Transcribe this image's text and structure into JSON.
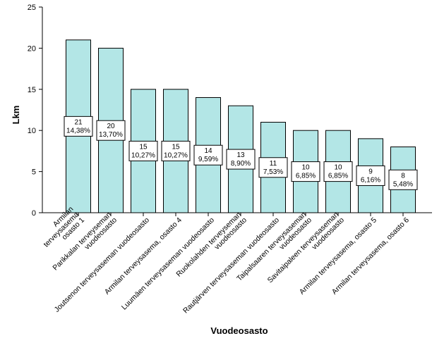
{
  "chart_data": {
    "type": "bar",
    "categories": [
      [
        "Armilan",
        "terveysasema",
        "osasto 1"
      ],
      [
        "Parikkalan terveyseman",
        "vuodeosasto"
      ],
      [
        "Joutsenon terveysaseman vuodeosasto"
      ],
      [
        "Armilan terveysasema, osasto 4"
      ],
      [
        "Luumäen terveysaseman vuodeosasto"
      ],
      [
        "Ruokolahden terveyseman",
        "vuodeosasto"
      ],
      [
        "Rautjärven terveysaseman vuodeosasto"
      ],
      [
        "Taipalsaaren terveysaseman",
        "vuodeosasto"
      ],
      [
        "Savitaipaleen terveysaseman",
        "vuodeosasto"
      ],
      [
        "Armilan terveysasema, osasto 5"
      ],
      [
        "Armilan terveysasema, osasto 6"
      ]
    ],
    "values": [
      21,
      20,
      15,
      15,
      14,
      13,
      11,
      10,
      10,
      9,
      8
    ],
    "data_labels": [
      [
        "21",
        "14,38%"
      ],
      [
        "20",
        "13,70%"
      ],
      [
        "15",
        "10,27%"
      ],
      [
        "15",
        "10,27%"
      ],
      [
        "14",
        "9,59%"
      ],
      [
        "13",
        "8,90%"
      ],
      [
        "11",
        "7,53%"
      ],
      [
        "10",
        "6,85%"
      ],
      [
        "10",
        "6,85%"
      ],
      [
        "9",
        "6,16%"
      ],
      [
        "8",
        "5,48%"
      ]
    ],
    "xlabel": "Vuodeosasto",
    "ylabel": "Lkm",
    "ylim": [
      0,
      25
    ],
    "yticks": [
      "0",
      "5",
      "10",
      "15",
      "20",
      "25"
    ],
    "grid": false,
    "bar_color": "#b3e6e6",
    "bar_edge_color": "#000000"
  }
}
